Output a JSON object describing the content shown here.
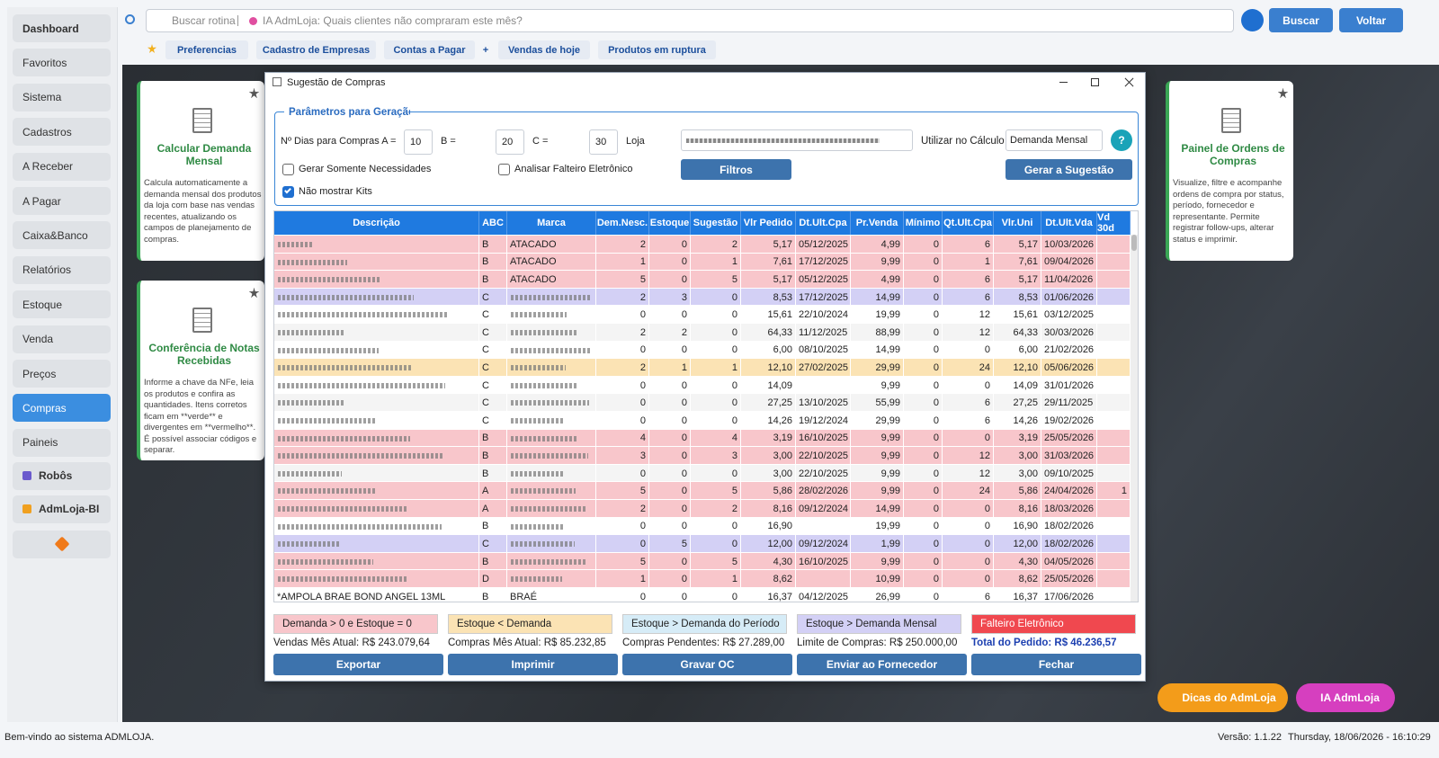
{
  "sidebar": {
    "items": [
      "Dashboard",
      "Favoritos",
      "Sistema",
      "Cadastros",
      "A Receber",
      "A Pagar",
      "Caixa&Banco",
      "Relatórios",
      "Estoque",
      "Venda",
      "Preços",
      "Compras",
      "Paineis",
      "Robôs",
      "AdmLoja-BI"
    ],
    "active": "Compras"
  },
  "topbar": {
    "search_placeholder": "Buscar rotina",
    "ai_placeholder": "IA AdmLoja: Quais clientes não compraram este mês?",
    "search_button": "Buscar",
    "back_button": "Voltar"
  },
  "favorites": [
    "Preferencias",
    "Cadastro de Empresas",
    "Contas a Pagar",
    "+",
    "Vendas de hoje",
    "Produtos em ruptura"
  ],
  "cards": [
    {
      "title": "Calcular Demanda Mensal",
      "text": "Calcula automaticamente a demanda mensal dos produtos da loja com base nas vendas recentes, atualizando os campos de planejamento de compras."
    },
    {
      "title": "Conferência de Notas Recebidas",
      "text": "Informe a chave da NFe, leia os produtos e confira as quantidades. Itens corretos ficam em **verde** e divergentes em **vermelho**. É possível associar códigos e separar."
    },
    {
      "title": "Painel de Ordens de Compras",
      "text": "Visualize, filtre e acompanhe ordens de compra por status, período, fornecedor e representante. Permite registrar follow-ups, alterar status e imprimir."
    }
  ],
  "dialog": {
    "title": "Sugestão de Compras",
    "params": {
      "group_title": "Parâmetros para Geração",
      "label_a": "Nº Dias para Compras A =",
      "value_a": 10,
      "label_b": "B =",
      "value_b": 20,
      "label_c": "C =",
      "value_c": 30,
      "label_loja": "Loja",
      "label_calc": "Utilizar no Cálculo",
      "calc_value": "Demanda Mensal",
      "help": "?",
      "filter_button": "Filtros",
      "generate_button": "Gerar a Sugestão",
      "checkboxes": [
        {
          "label": "Gerar Somente Necessidades",
          "checked": false
        },
        {
          "label": "Analisar Falteiro Eletrônico",
          "checked": false
        },
        {
          "label": "Não mostrar Kits",
          "checked": true
        }
      ]
    },
    "table": {
      "columns": [
        "Descrição",
        "ABC",
        "Marca",
        "Dem.Nesc.",
        "Estoque",
        "Sugestão",
        "Vlr Pedido",
        "Dt.Ult.Cpa",
        "Pr.Venda",
        "Mínimo",
        "Qt.Ult.Cpa",
        "Vlr.Uni",
        "Dt.Ult.Vda",
        "Vd 30d"
      ],
      "rows": [
        {
          "color": "#f8c6cb",
          "cells": [
            null,
            "B",
            "ATACADO",
            2,
            0,
            2,
            "5,17",
            "05/12/2025",
            "4,99",
            0,
            6,
            "5,17",
            "10/03/2026",
            null
          ]
        },
        {
          "color": "#f8c6cb",
          "cells": [
            null,
            "B",
            "ATACADO",
            1,
            0,
            1,
            "7,61",
            "17/12/2025",
            "9,99",
            0,
            1,
            "7,61",
            "09/04/2026",
            null
          ]
        },
        {
          "color": "#f8c6cb",
          "cells": [
            null,
            "B",
            "ATACADO",
            5,
            0,
            5,
            "5,17",
            "05/12/2025",
            "4,99",
            0,
            6,
            "5,17",
            "11/04/2026",
            null
          ]
        },
        {
          "color": "#d3d0f5",
          "cells": [
            null,
            "C",
            null,
            2,
            3,
            0,
            "8,53",
            "17/12/2025",
            "14,99",
            0,
            6,
            "8,53",
            "01/06/2026",
            null
          ]
        },
        {
          "color": "#ffffff",
          "cells": [
            null,
            "C",
            null,
            0,
            0,
            0,
            "15,61",
            "22/10/2024",
            "19,99",
            0,
            12,
            "15,61",
            "03/12/2025",
            null
          ]
        },
        {
          "color": "#f4f4f4",
          "cells": [
            null,
            "C",
            null,
            2,
            2,
            0,
            "64,33",
            "11/12/2025",
            "88,99",
            0,
            12,
            "64,33",
            "30/03/2026",
            null
          ]
        },
        {
          "color": "#ffffff",
          "cells": [
            null,
            "C",
            null,
            0,
            0,
            0,
            "6,00",
            "08/10/2025",
            "14,99",
            0,
            0,
            "6,00",
            "21/02/2026",
            null
          ]
        },
        {
          "color": "#fbe3b4",
          "cells": [
            null,
            "C",
            null,
            2,
            1,
            1,
            "12,10",
            "27/02/2025",
            "29,99",
            0,
            24,
            "12,10",
            "05/06/2026",
            null
          ]
        },
        {
          "color": "#ffffff",
          "cells": [
            null,
            "C",
            null,
            0,
            0,
            0,
            "14,09",
            null,
            "9,99",
            0,
            0,
            "14,09",
            "31/01/2026",
            null
          ]
        },
        {
          "color": "#f4f4f4",
          "cells": [
            null,
            "C",
            null,
            0,
            0,
            0,
            "27,25",
            "13/10/2025",
            "55,99",
            0,
            6,
            "27,25",
            "29/11/2025",
            null
          ]
        },
        {
          "color": "#ffffff",
          "cells": [
            null,
            "C",
            null,
            0,
            0,
            0,
            "14,26",
            "19/12/2024",
            "29,99",
            0,
            6,
            "14,26",
            "19/02/2026",
            null
          ]
        },
        {
          "color": "#f8c6cb",
          "cells": [
            null,
            "B",
            null,
            4,
            0,
            4,
            "3,19",
            "16/10/2025",
            "9,99",
            0,
            0,
            "3,19",
            "25/05/2026",
            null
          ]
        },
        {
          "color": "#f8c6cb",
          "cells": [
            null,
            "B",
            null,
            3,
            0,
            3,
            "3,00",
            "22/10/2025",
            "9,99",
            0,
            12,
            "3,00",
            "31/03/2026",
            null
          ]
        },
        {
          "color": "#f4f4f4",
          "cells": [
            null,
            "B",
            null,
            0,
            0,
            0,
            "3,00",
            "22/10/2025",
            "9,99",
            0,
            12,
            "3,00",
            "09/10/2025",
            null
          ]
        },
        {
          "color": "#f8c6cb",
          "cells": [
            null,
            "A",
            null,
            5,
            0,
            5,
            "5,86",
            "28/02/2026",
            "9,99",
            0,
            24,
            "5,86",
            "24/04/2026",
            1
          ]
        },
        {
          "color": "#f8c6cb",
          "cells": [
            null,
            "A",
            null,
            2,
            0,
            2,
            "8,16",
            "09/12/2024",
            "14,99",
            0,
            0,
            "8,16",
            "18/03/2026",
            null
          ]
        },
        {
          "color": "#ffffff",
          "cells": [
            null,
            "B",
            null,
            0,
            0,
            0,
            "16,90",
            null,
            "19,99",
            0,
            0,
            "16,90",
            "18/02/2026",
            null
          ]
        },
        {
          "color": "#d3d0f5",
          "cells": [
            null,
            "C",
            null,
            0,
            5,
            0,
            "12,00",
            "09/12/2024",
            "1,99",
            0,
            0,
            "12,00",
            "18/02/2026",
            null
          ]
        },
        {
          "color": "#f8c6cb",
          "cells": [
            null,
            "B",
            null,
            5,
            0,
            5,
            "4,30",
            "16/10/2025",
            "9,99",
            0,
            0,
            "4,30",
            "04/05/2026",
            null
          ]
        },
        {
          "color": "#f8c6cb",
          "cells": [
            null,
            "D",
            null,
            1,
            0,
            1,
            "8,62",
            null,
            "10,99",
            0,
            0,
            "8,62",
            "25/05/2026",
            null
          ]
        },
        {
          "color": "#ffffff",
          "cells": [
            "*AMPOLA BRAE BOND ANGEL 13ML",
            "B",
            "BRAÉ",
            0,
            0,
            0,
            "16,37",
            "04/12/2025",
            "26,99",
            0,
            6,
            "16,37",
            "17/06/2026",
            null
          ]
        }
      ]
    },
    "legend": [
      {
        "label": "Demanda > 0 e Estoque = 0",
        "color": "#f8c6cb"
      },
      {
        "label": "Estoque < Demanda",
        "color": "#fbe3b4"
      },
      {
        "label": "Estoque > Demanda do Período",
        "color": "#d6ecf7"
      },
      {
        "label": "Estoque > Demanda Mensal",
        "color": "#d3d0f5"
      },
      {
        "label": "Falteiro Eletrônico",
        "color": "#f0484f"
      }
    ],
    "totals": [
      "Vendas Mês Atual: R$ 243.079,64",
      "Compras Mês Atual: R$ 85.232,85",
      "Compras Pendentes: R$ 27.289,00",
      "Limite de Compras: R$ 250.000,00",
      "Total do Pedido: R$ 46.236,57"
    ],
    "buttons": [
      "Exportar",
      "Imprimir",
      "Gravar OC",
      "Enviar ao Fornecedor",
      "Fechar"
    ]
  },
  "floating": [
    "Dicas do AdmLoja",
    "IA AdmLoja"
  ],
  "statusbar": {
    "message": "Bem-vindo ao sistema ADMLOJA.",
    "version": "Versão: 1.1.22",
    "datetime": "Thursday, 18/06/2026 - 16:10:29"
  }
}
